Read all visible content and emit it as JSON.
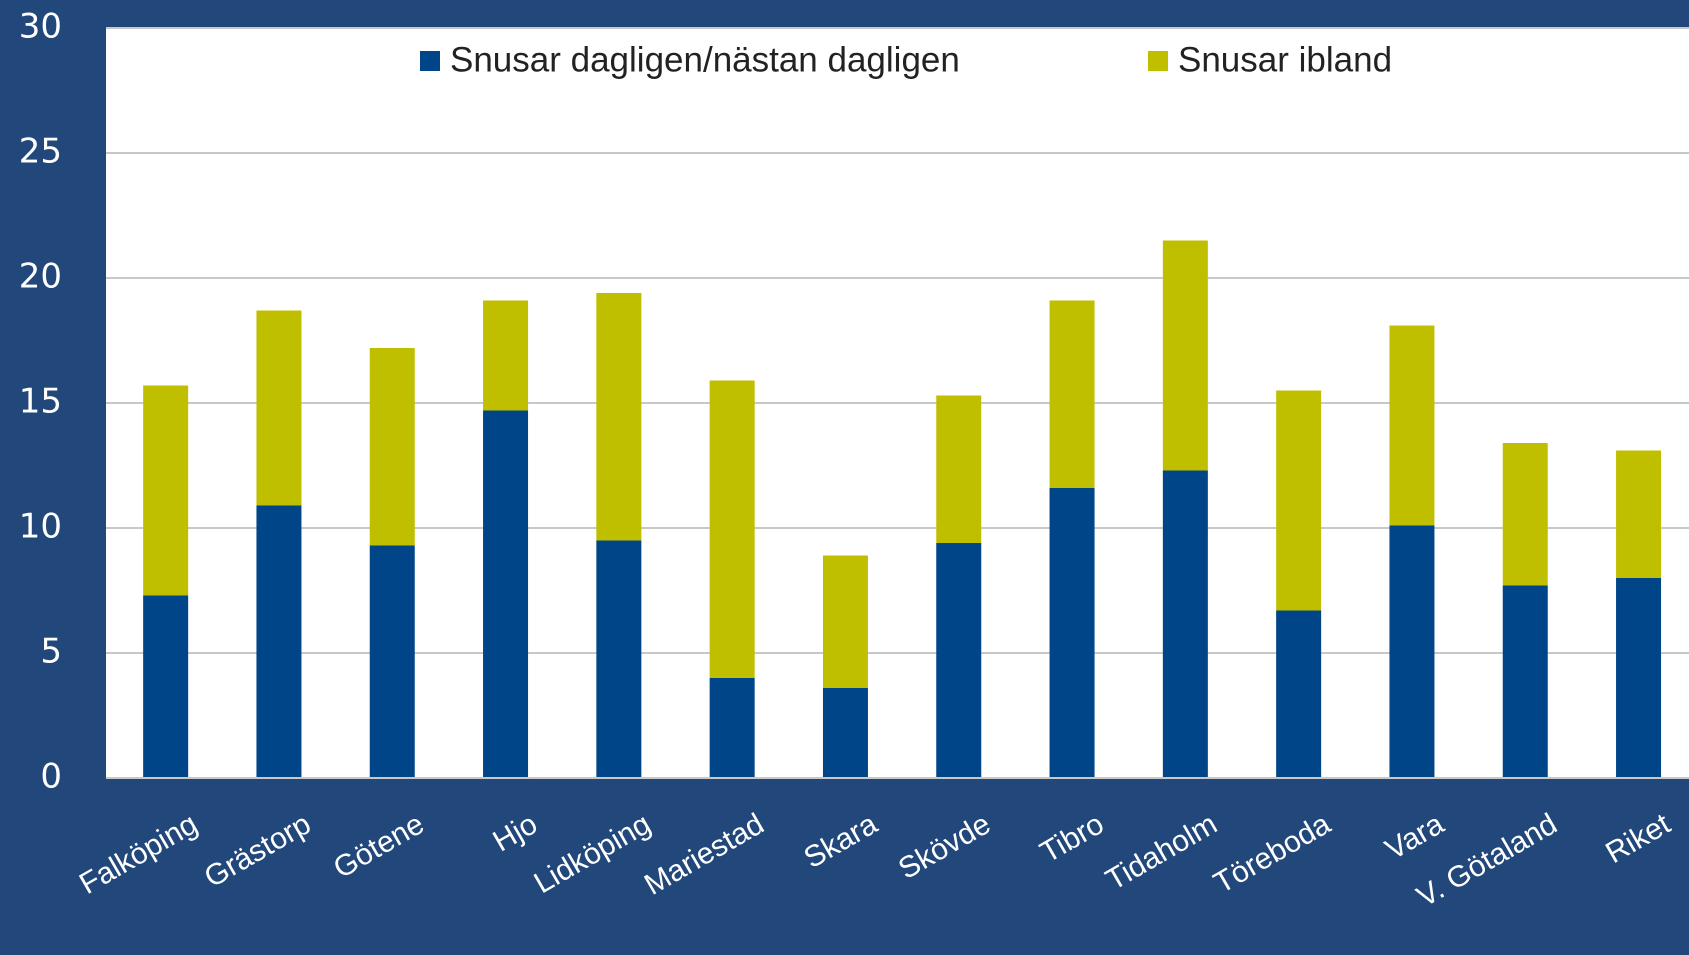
{
  "chart_data": {
    "type": "stacked_bar",
    "categories": [
      "Falköping",
      "Grästorp",
      "Götene",
      "Hjo",
      "Lidköping",
      "Mariestad",
      "Skara",
      "Skövde",
      "Tibro",
      "Tidaholm",
      "Töreboda",
      "Vara",
      "V. Götaland",
      "Riket"
    ],
    "series": [
      {
        "name": "Snusar dagligen/nästan dagligen",
        "color": "#004587",
        "values": [
          7.3,
          10.9,
          9.3,
          14.7,
          9.5,
          4.0,
          3.6,
          9.4,
          11.6,
          12.3,
          6.7,
          10.1,
          7.7,
          8.0
        ]
      },
      {
        "name": "Snusar ibland",
        "color": "#bfbf00",
        "values": [
          8.4,
          7.8,
          7.9,
          4.4,
          9.9,
          11.9,
          5.3,
          5.9,
          7.5,
          9.2,
          8.8,
          8.0,
          5.7,
          5.1
        ]
      }
    ],
    "ylim": [
      0,
      30
    ],
    "yticks": [
      0,
      5,
      10,
      15,
      20,
      25,
      30
    ],
    "grid": true,
    "legend": "top"
  }
}
